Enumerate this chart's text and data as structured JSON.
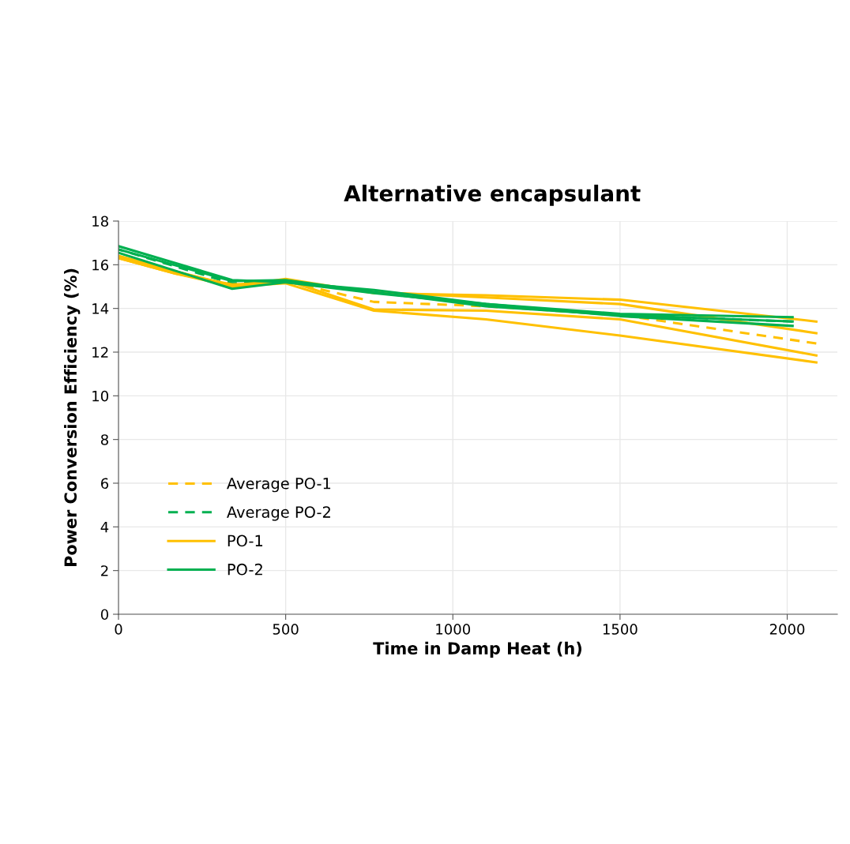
{
  "chart_data": {
    "type": "line",
    "title": "Alternative encapsulant",
    "xlabel": "Time in Damp Heat (h)",
    "ylabel": "Power Conversion Efficiency (%)",
    "xlim": [
      0,
      2150
    ],
    "xticks": [
      0,
      500,
      1000,
      1500,
      2000
    ],
    "ylim": [
      0,
      18
    ],
    "yticks": [
      0,
      2,
      4,
      6,
      8,
      10,
      12,
      14,
      16,
      18
    ],
    "grid": true,
    "legend": "left",
    "marker": "none",
    "series": [
      {
        "name": "Average PO-1",
        "color": "#ffc000",
        "line_style": "dashed",
        "x": [
          0,
          170,
          340,
          500,
          764,
          1099,
          1500,
          2087
        ],
        "values": [
          16.35,
          15.65,
          15.05,
          15.25,
          14.3,
          14.1,
          13.7,
          12.4
        ]
      },
      {
        "name": "Average PO-2",
        "color": "#00b050",
        "line_style": "dashed",
        "x": [
          0,
          340,
          500,
          764,
          1099,
          1500,
          2016
        ],
        "values": [
          16.7,
          15.15,
          15.23,
          14.77,
          14.17,
          13.7,
          13.4
        ]
      },
      {
        "name": "PO-1",
        "color": "#ffc000",
        "line_style": "solid",
        "x": [
          0,
          170,
          340,
          500,
          764,
          1099,
          1500,
          2087
        ],
        "values": [
          16.4,
          15.7,
          15.0,
          15.35,
          14.7,
          14.6,
          14.4,
          13.4
        ]
      },
      {
        "color": "#ffc000",
        "line_style": "solid",
        "x": [
          0,
          170,
          340,
          500,
          764,
          1099,
          1500,
          2087
        ],
        "values": [
          16.3,
          15.6,
          15.1,
          15.2,
          14.75,
          14.5,
          14.2,
          12.87
        ]
      },
      {
        "color": "#ffc000",
        "line_style": "solid",
        "x": [
          0,
          170,
          340,
          500,
          764,
          1099,
          1500,
          2087
        ],
        "values": [
          16.4,
          15.7,
          15.05,
          15.3,
          13.95,
          13.9,
          13.5,
          11.85
        ]
      },
      {
        "color": "#ffc000",
        "line_style": "solid",
        "x": [
          0,
          170,
          340,
          500,
          764,
          1099,
          1500,
          2087
        ],
        "values": [
          16.3,
          15.6,
          15.0,
          15.15,
          13.9,
          13.5,
          12.76,
          11.53
        ]
      },
      {
        "name": "PO-2",
        "color": "#00b050",
        "line_style": "solid",
        "x": [
          0,
          340,
          500,
          764,
          1099,
          1500,
          2016
        ],
        "values": [
          16.85,
          15.3,
          15.2,
          14.85,
          14.2,
          13.75,
          13.6
        ]
      },
      {
        "color": "#00b050",
        "line_style": "solid",
        "x": [
          0,
          340,
          500,
          764,
          1099,
          1500,
          2016
        ],
        "values": [
          16.7,
          15.25,
          15.3,
          14.75,
          14.1,
          13.7,
          13.4
        ]
      },
      {
        "color": "#00b050",
        "line_style": "solid",
        "x": [
          0,
          340,
          500,
          764,
          1099,
          1500,
          2016
        ],
        "values": [
          16.55,
          14.9,
          15.2,
          14.7,
          14.2,
          13.65,
          13.2
        ]
      }
    ]
  }
}
